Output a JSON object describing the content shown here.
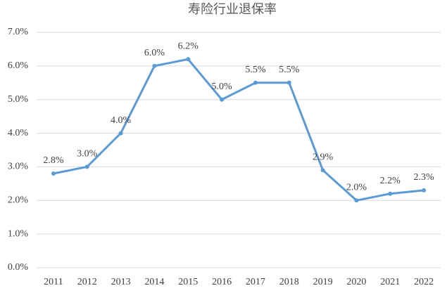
{
  "chart_data": {
    "type": "line",
    "title": "寿险行业退保率",
    "categories": [
      "2011",
      "2012",
      "2013",
      "2014",
      "2015",
      "2016",
      "2017",
      "2018",
      "2019",
      "2020",
      "2021",
      "2022"
    ],
    "values": [
      2.8,
      3.0,
      4.0,
      6.0,
      6.2,
      5.0,
      5.5,
      5.5,
      2.9,
      2.0,
      2.2,
      2.3
    ],
    "value_labels": [
      "2.8%",
      "3.0%",
      "4.0%",
      "6.0%",
      "6.2%",
      "5.0%",
      "5.5%",
      "5.5%",
      "2.9%",
      "2.0%",
      "2.2%",
      "2.3%"
    ],
    "color": "#5b9bd5",
    "ylim": [
      0,
      7
    ],
    "yticks": [
      {
        "value": 0,
        "label": "0.0%"
      },
      {
        "value": 1,
        "label": "1.0%"
      },
      {
        "value": 2,
        "label": "2.0%"
      },
      {
        "value": 3,
        "label": "3.0%"
      },
      {
        "value": 4,
        "label": "4.0%"
      },
      {
        "value": 5,
        "label": "5.0%"
      },
      {
        "value": 6,
        "label": "6.0%"
      },
      {
        "value": 7,
        "label": "7.0%"
      }
    ],
    "grid": true
  }
}
